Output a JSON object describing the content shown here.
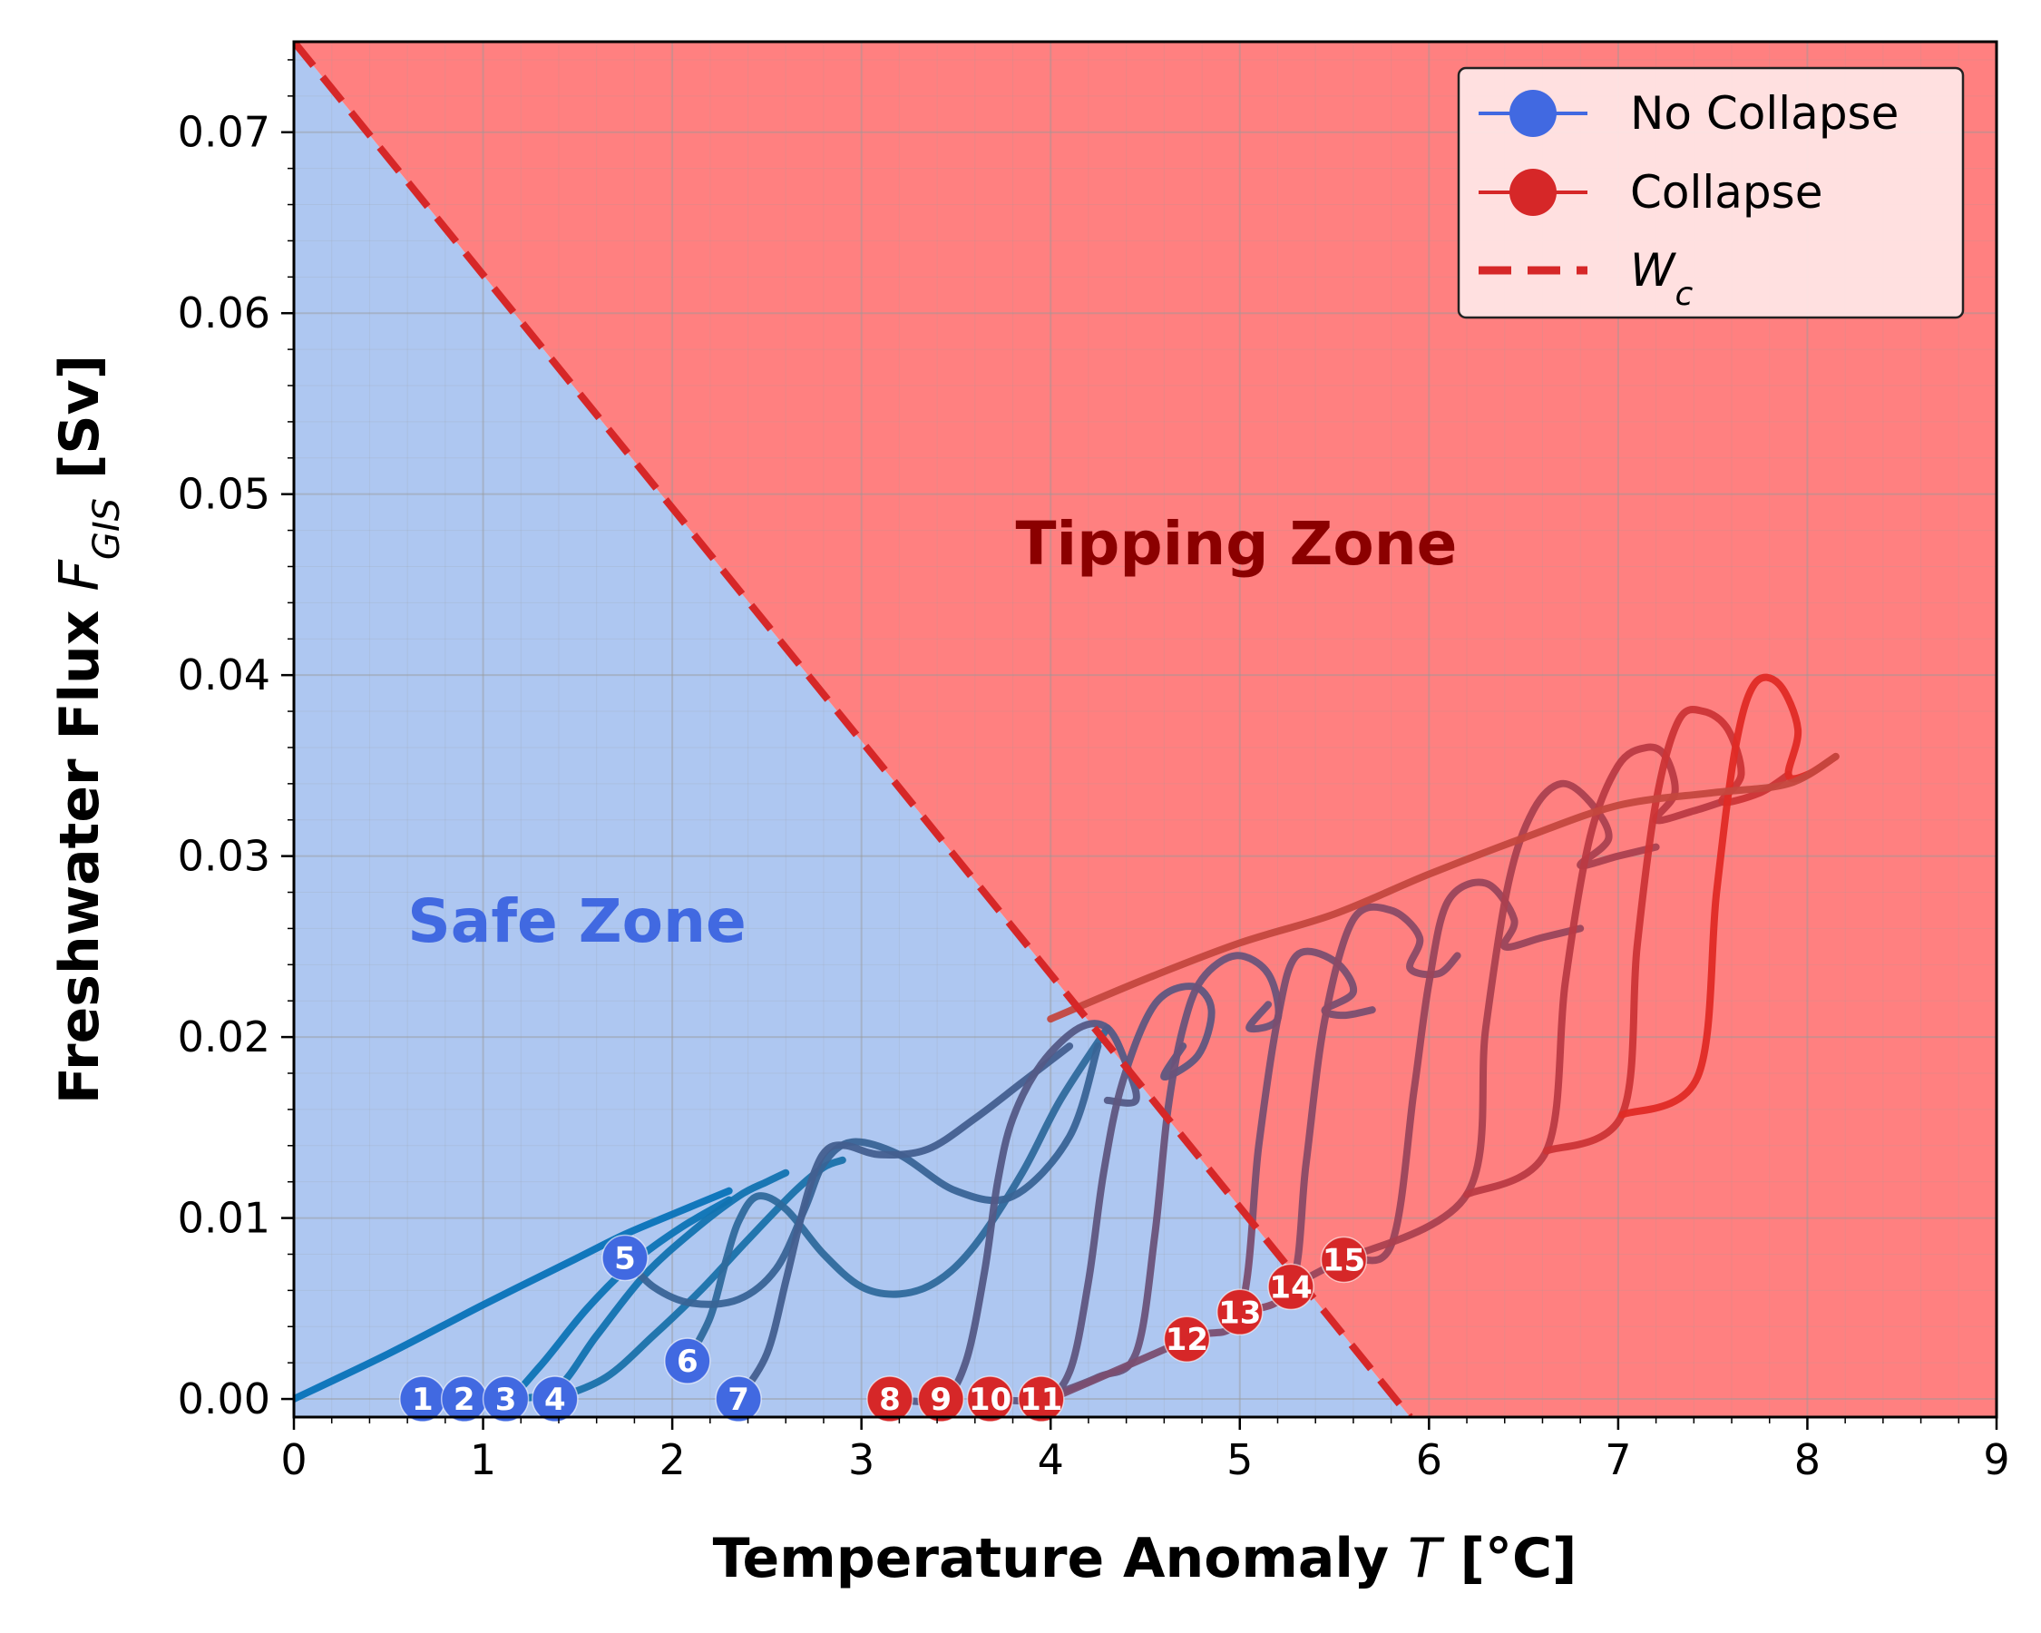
{
  "chart_data": {
    "type": "line",
    "xlabel": {
      "main": "Temperature Anomaly ",
      "symbol": "T",
      "unit": " [°C]"
    },
    "ylabel": {
      "main": "Freshwater Flux ",
      "symbol": "F",
      "subscript": "GIS",
      "unit": " [Sv]"
    },
    "xlim": [
      0,
      9
    ],
    "ylim": [
      -0.001,
      0.075
    ],
    "xticks": [
      "0",
      "1",
      "2",
      "3",
      "4",
      "5",
      "6",
      "7",
      "8",
      "9"
    ],
    "yticks": [
      "0.00",
      "0.01",
      "0.02",
      "0.03",
      "0.04",
      "0.05",
      "0.06",
      "0.07"
    ],
    "grid": true,
    "legend_position": "top-right",
    "regions": [
      {
        "name": "Safe Zone",
        "color": "#aec7f1",
        "label_color": "#4169e1"
      },
      {
        "name": "Tipping Zone",
        "color": "#ff8080",
        "label_color": "#8b0000"
      }
    ],
    "threshold": {
      "label_symbol": "W",
      "label_subscript": "c",
      "color": "#d62728",
      "style": "dashed",
      "x": [
        0,
        5.9
      ],
      "y": [
        0.075,
        -0.001
      ]
    },
    "legend": [
      {
        "label": "No Collapse",
        "color": "#4169e1",
        "marker": "circle"
      },
      {
        "label": "Collapse",
        "color": "#d62728",
        "marker": "circle"
      }
    ],
    "start_points": [
      {
        "id": "1",
        "x": 0.68,
        "y": 0.0,
        "outcome": "no-collapse"
      },
      {
        "id": "2",
        "x": 0.9,
        "y": 0.0,
        "outcome": "no-collapse"
      },
      {
        "id": "3",
        "x": 1.12,
        "y": 0.0,
        "outcome": "no-collapse"
      },
      {
        "id": "4",
        "x": 1.38,
        "y": 0.0,
        "outcome": "no-collapse"
      },
      {
        "id": "5",
        "x": 1.75,
        "y": 0.0078,
        "outcome": "no-collapse"
      },
      {
        "id": "6",
        "x": 2.08,
        "y": 0.0021,
        "outcome": "no-collapse"
      },
      {
        "id": "7",
        "x": 2.35,
        "y": 0.0,
        "outcome": "no-collapse"
      },
      {
        "id": "8",
        "x": 3.15,
        "y": 0.0,
        "outcome": "collapse"
      },
      {
        "id": "9",
        "x": 3.42,
        "y": 0.0,
        "outcome": "collapse"
      },
      {
        "id": "10",
        "x": 3.68,
        "y": 0.0,
        "outcome": "collapse"
      },
      {
        "id": "11",
        "x": 3.95,
        "y": 0.0,
        "outcome": "collapse"
      },
      {
        "id": "12",
        "x": 4.72,
        "y": 0.0033,
        "outcome": "collapse"
      },
      {
        "id": "13",
        "x": 5.0,
        "y": 0.0048,
        "outcome": "collapse"
      },
      {
        "id": "14",
        "x": 5.27,
        "y": 0.0062,
        "outcome": "collapse"
      },
      {
        "id": "15",
        "x": 5.55,
        "y": 0.0077,
        "outcome": "collapse"
      }
    ],
    "trajectories": [
      {
        "color": "#0873b8",
        "x": [
          0,
          0.5,
          1.0,
          1.5,
          1.75,
          2.0,
          2.3
        ],
        "y": [
          0,
          0.0025,
          0.0052,
          0.0078,
          0.0091,
          0.0102,
          0.0115
        ]
      },
      {
        "color": "#0d74b5",
        "x": [
          0.9,
          1.12,
          1.3,
          1.55,
          1.8,
          2.05,
          2.3
        ],
        "y": [
          0,
          0,
          0.0018,
          0.005,
          0.0076,
          0.0095,
          0.011
        ]
      },
      {
        "color": "#1273b0",
        "x": [
          1.12,
          1.38,
          1.6,
          1.85,
          2.1,
          2.35,
          2.5,
          2.6
        ],
        "y": [
          0,
          0.0005,
          0.0035,
          0.0068,
          0.0092,
          0.0112,
          0.012,
          0.0125
        ]
      },
      {
        "color": "#1a72aa",
        "x": [
          1.38,
          1.65,
          1.9,
          2.15,
          2.4,
          2.65,
          2.8,
          2.9
        ],
        "y": [
          0,
          0.0012,
          0.0035,
          0.006,
          0.0088,
          0.0115,
          0.0128,
          0.0132
        ]
      },
      {
        "color": "#2f6a9c",
        "x": [
          2.08,
          2.2,
          2.28,
          2.35,
          2.45,
          2.6,
          2.8,
          3.0,
          3.2,
          3.4,
          3.6,
          3.85,
          4.05,
          4.3
        ],
        "y": [
          0.0021,
          0.0045,
          0.0075,
          0.0098,
          0.0112,
          0.0105,
          0.008,
          0.0062,
          0.0058,
          0.0065,
          0.0085,
          0.0125,
          0.0165,
          0.0205
        ]
      },
      {
        "color": "#396496",
        "x": [
          1.75,
          1.9,
          2.1,
          2.35,
          2.55,
          2.7,
          2.8,
          2.95,
          3.2,
          3.5,
          3.8,
          4.1,
          4.25
        ],
        "y": [
          0.0078,
          0.0062,
          0.0053,
          0.0055,
          0.0072,
          0.0105,
          0.013,
          0.0142,
          0.0135,
          0.0115,
          0.0112,
          0.0145,
          0.0195
        ]
      },
      {
        "color": "#435f8f",
        "x": [
          2.35,
          2.5,
          2.6,
          2.68,
          2.75,
          2.82,
          2.92,
          3.1,
          3.35,
          3.6,
          3.85,
          4.1
        ],
        "y": [
          0,
          0.0025,
          0.0065,
          0.01,
          0.0125,
          0.0138,
          0.014,
          0.0135,
          0.0138,
          0.0155,
          0.0175,
          0.0195
        ]
      },
      {
        "color": "#545a86",
        "x": [
          3.15,
          3.42,
          3.55,
          3.65,
          3.72,
          3.8,
          3.95,
          4.15,
          4.3,
          4.4,
          4.45,
          4.3
        ],
        "y": [
          0,
          0,
          0.002,
          0.007,
          0.012,
          0.0155,
          0.0185,
          0.0205,
          0.0205,
          0.0185,
          0.0165,
          0.0165
        ]
      },
      {
        "color": "#5f5680",
        "x": [
          3.68,
          3.95,
          4.1,
          4.2,
          4.28,
          4.38,
          4.55,
          4.75,
          4.85,
          4.78,
          4.6,
          4.7
        ],
        "y": [
          0,
          0,
          0.0015,
          0.0065,
          0.0125,
          0.0175,
          0.0218,
          0.0228,
          0.0215,
          0.019,
          0.0178,
          0.0195
        ]
      },
      {
        "color": "#6a537a",
        "x": [
          3.95,
          4.25,
          4.45,
          4.55,
          4.62,
          4.7,
          4.8,
          4.98,
          5.15,
          5.2,
          5.05,
          5.15
        ],
        "y": [
          0,
          0.0012,
          0.0025,
          0.009,
          0.016,
          0.0205,
          0.0232,
          0.0245,
          0.0235,
          0.021,
          0.0205,
          0.0218
        ]
      },
      {
        "color": "#7a4e70",
        "x": [
          4.0,
          4.72,
          5.0,
          5.1,
          5.2,
          5.3,
          5.5,
          5.6,
          5.45,
          5.55,
          5.7
        ],
        "y": [
          0,
          0.0033,
          0.0048,
          0.014,
          0.021,
          0.0245,
          0.0242,
          0.0225,
          0.0215,
          0.0212,
          0.0215
        ]
      },
      {
        "color": "#8a4a66",
        "x": [
          5.0,
          5.27,
          5.35,
          5.45,
          5.6,
          5.8,
          5.95,
          5.9,
          6.05,
          6.15
        ],
        "y": [
          0.0048,
          0.0062,
          0.013,
          0.021,
          0.0265,
          0.027,
          0.0255,
          0.0238,
          0.0235,
          0.0245
        ]
      },
      {
        "color": "#9a455b",
        "x": [
          5.27,
          5.55,
          5.8,
          5.92,
          6.0,
          6.1,
          6.3,
          6.45,
          6.4,
          6.6,
          6.8
        ],
        "y": [
          0.0062,
          0.0077,
          0.0085,
          0.017,
          0.023,
          0.0275,
          0.0285,
          0.0265,
          0.025,
          0.0255,
          0.026
        ]
      },
      {
        "color": "#ab404f",
        "x": [
          5.55,
          6.2,
          6.3,
          6.42,
          6.55,
          6.7,
          6.85,
          6.95,
          6.8,
          7.0,
          7.2
        ],
        "y": [
          0.0077,
          0.0113,
          0.0205,
          0.0285,
          0.0325,
          0.034,
          0.033,
          0.031,
          0.0295,
          0.03,
          0.0305
        ]
      },
      {
        "color": "#bb3a43",
        "x": [
          6.2,
          6.62,
          6.72,
          6.85,
          7.0,
          7.15,
          7.25,
          7.3,
          7.2,
          7.4,
          7.55
        ],
        "y": [
          0.0113,
          0.0137,
          0.023,
          0.031,
          0.035,
          0.036,
          0.0355,
          0.0335,
          0.032,
          0.0325,
          0.033
        ]
      },
      {
        "color": "#cc3436",
        "x": [
          6.62,
          7.02,
          7.1,
          7.2,
          7.32,
          7.45,
          7.58,
          7.65,
          7.55,
          7.75,
          7.9
        ],
        "y": [
          0.0137,
          0.0157,
          0.025,
          0.033,
          0.0375,
          0.038,
          0.037,
          0.0345,
          0.033,
          0.0335,
          0.0345
        ]
      },
      {
        "color": "#e02a25",
        "x": [
          7.02,
          7.42,
          7.52,
          7.62,
          7.72,
          7.85,
          7.95,
          7.9,
          8.0,
          8.15
        ],
        "y": [
          0.0157,
          0.0178,
          0.028,
          0.036,
          0.0395,
          0.0395,
          0.037,
          0.0345,
          0.0345,
          0.0355
        ]
      },
      {
        "color": "#c4473e",
        "x": [
          4.0,
          4.5,
          5.0,
          5.5,
          6.0,
          6.5,
          7.0,
          7.5,
          7.9,
          8.15
        ],
        "y": [
          0.021,
          0.0232,
          0.0252,
          0.0268,
          0.029,
          0.031,
          0.0328,
          0.0335,
          0.034,
          0.0355
        ]
      }
    ]
  }
}
